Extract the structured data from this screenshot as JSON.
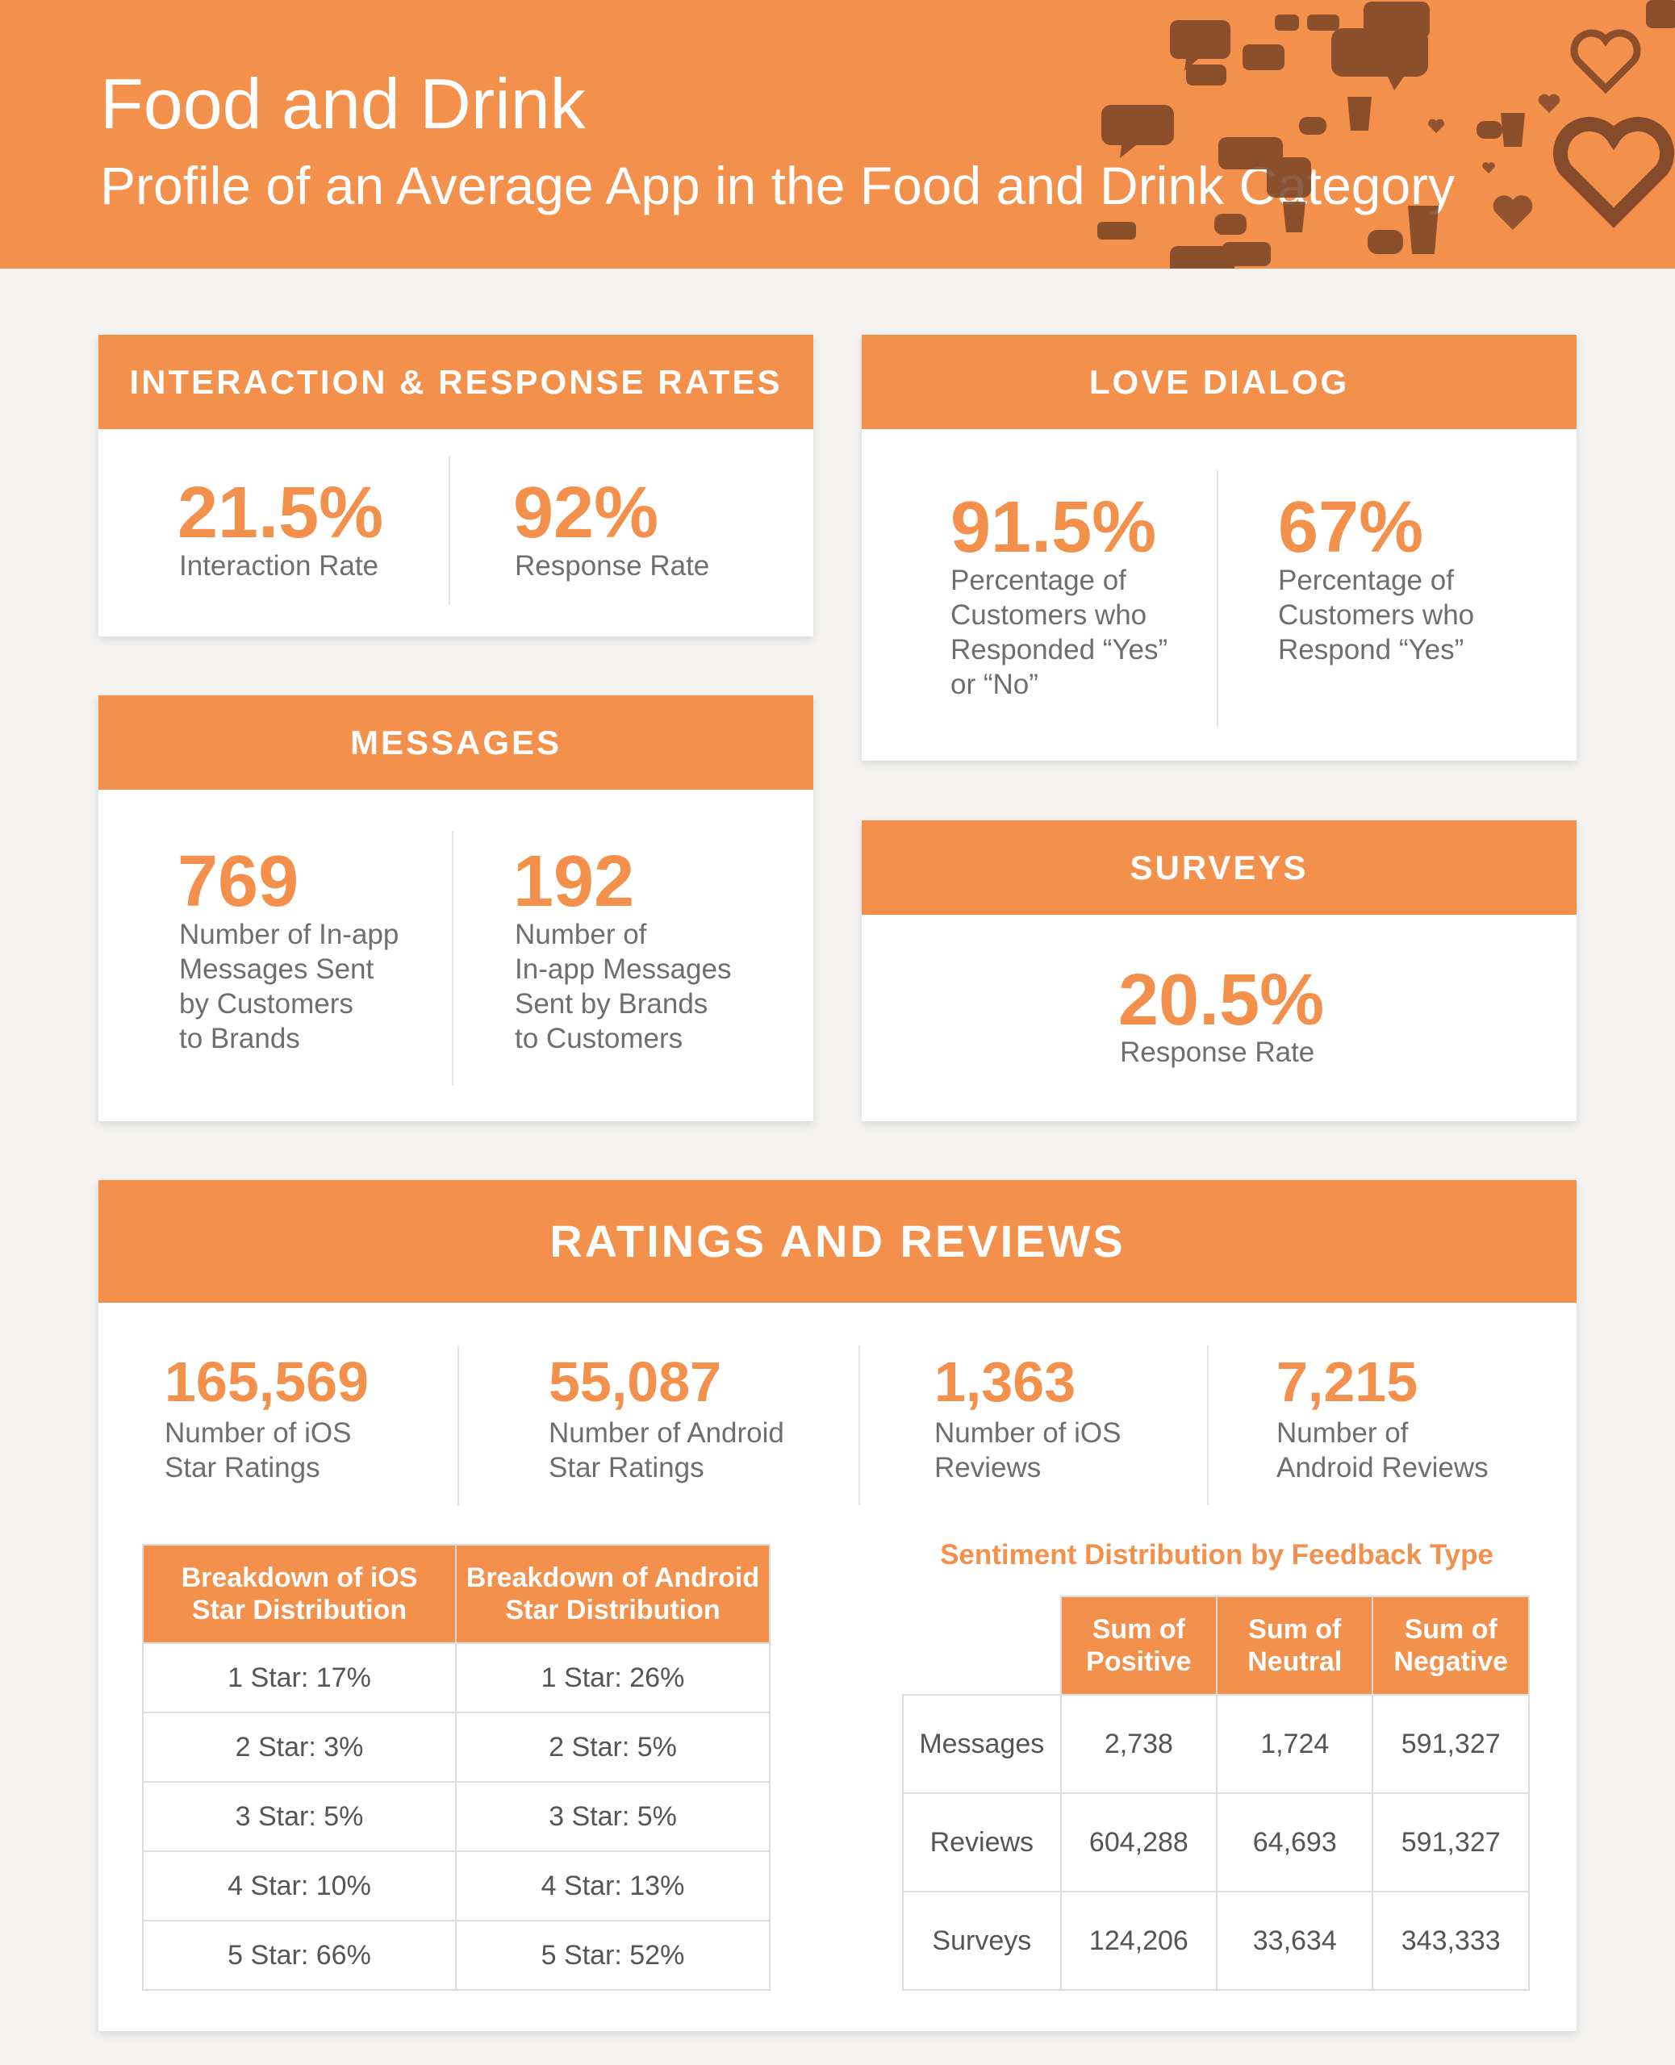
{
  "header": {
    "title": "Food and Drink",
    "subtitle": "Profile of an Average App in the Food and Drink Category"
  },
  "interaction": {
    "heading": "INTERACTION & RESPONSE RATES",
    "interaction_value": "21.5%",
    "interaction_label": "Interaction Rate",
    "response_value": "92%",
    "response_label": "Response Rate"
  },
  "love_dialog": {
    "heading": "LOVE DIALOG",
    "value1": "91.5%",
    "label1": "Percentage of\nCustomers who\nResponded “Yes”\nor “No”",
    "value2": "67%",
    "label2": "Percentage of\nCustomers who\nRespond “Yes”"
  },
  "messages": {
    "heading": "MESSAGES",
    "value1": "769",
    "label1": "Number of In-app\nMessages Sent\nby Customers\nto Brands",
    "value2": "192",
    "label2": "Number of\nIn-app Messages\nSent by Brands\nto Customers"
  },
  "surveys": {
    "heading": "SURVEYS",
    "value": "20.5%",
    "label": "Response Rate"
  },
  "ratings": {
    "heading": "RATINGS AND REVIEWS",
    "stats": [
      {
        "value": "165,569",
        "label": "Number of iOS\nStar Ratings"
      },
      {
        "value": "55,087",
        "label": "Number of Android\nStar Ratings"
      },
      {
        "value": "1,363",
        "label": "Number of iOS\nReviews"
      },
      {
        "value": "7,215",
        "label": "Number of\nAndroid Reviews"
      }
    ],
    "breakdown": {
      "ios_header": "Breakdown of iOS\nStar Distribution",
      "android_header": "Breakdown of Android\nStar Distribution",
      "rows": [
        [
          "1 Star: 17%",
          "1 Star: 26%"
        ],
        [
          "2 Star: 3%",
          "2 Star: 5%"
        ],
        [
          "3 Star: 5%",
          "3 Star: 5%"
        ],
        [
          "4 Star: 10%",
          "4 Star: 13%"
        ],
        [
          "5 Star: 66%",
          "5 Star: 52%"
        ]
      ]
    },
    "sentiment": {
      "title": "Sentiment Distribution by Feedback Type",
      "headers": [
        "Sum of\nPositive",
        "Sum of\nNeutral",
        "Sum of\nNegative"
      ],
      "rows": [
        {
          "label": "Messages",
          "values": [
            "2,738",
            "1,724",
            "591,327"
          ]
        },
        {
          "label": "Reviews",
          "values": [
            "604,288",
            "64,693",
            "591,327"
          ]
        },
        {
          "label": "Surveys",
          "values": [
            "124,206",
            "33,634",
            "343,333"
          ]
        }
      ]
    }
  },
  "colors": {
    "accent": "#f2904c",
    "decor": "#7a4427"
  }
}
